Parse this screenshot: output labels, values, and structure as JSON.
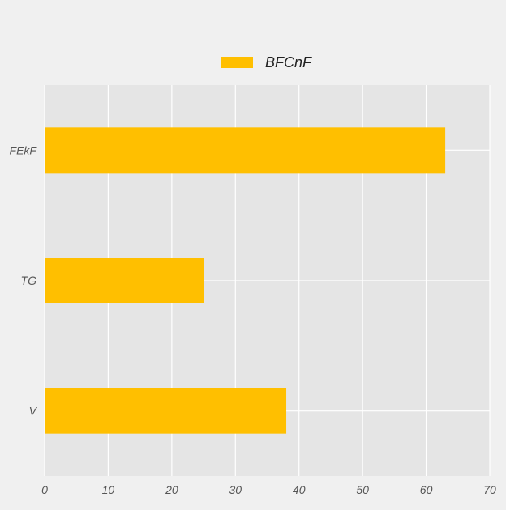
{
  "chart_data": {
    "type": "bar",
    "orientation": "horizontal",
    "categories": [
      "FEkF",
      "TG",
      "V"
    ],
    "series": [
      {
        "name": "BFCnF",
        "values": [
          63,
          25,
          38
        ],
        "color": "#ffbf00"
      }
    ],
    "xlim": [
      0,
      70
    ],
    "x_ticks": [
      "0",
      "10",
      "20",
      "30",
      "40",
      "50",
      "60",
      "70"
    ],
    "grid": true,
    "legend": {
      "position": "top-center"
    },
    "colors": {
      "background": "#f0f0f0",
      "plot_background": "#e5e5e5",
      "grid": "#ffffff"
    }
  }
}
